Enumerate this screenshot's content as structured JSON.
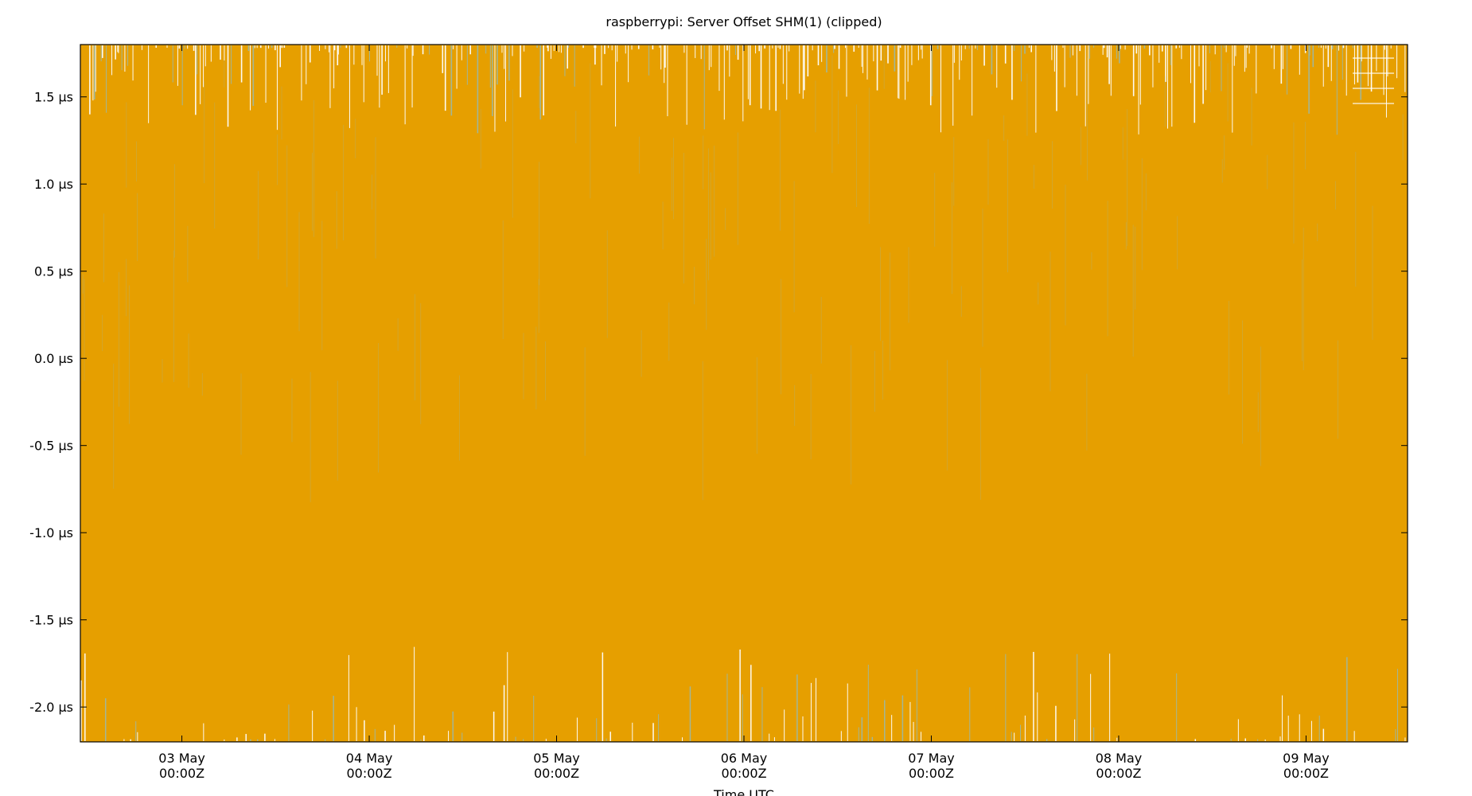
{
  "chart_data": {
    "type": "line",
    "title": "raspberrypi: Server Offset SHM(1) (clipped)",
    "xlabel": "Time UTC",
    "ylabel": "",
    "x_tick_labels": [
      [
        "03 May",
        "00:00Z"
      ],
      [
        "04 May",
        "00:00Z"
      ],
      [
        "05 May",
        "00:00Z"
      ],
      [
        "06 May",
        "00:00Z"
      ],
      [
        "07 May",
        "00:00Z"
      ],
      [
        "08 May",
        "00:00Z"
      ],
      [
        "09 May",
        "00:00Z"
      ]
    ],
    "y_ticks": [
      1.5,
      1.0,
      0.5,
      0.0,
      -0.5,
      -1.0,
      -1.5,
      -2.0
    ],
    "y_tick_labels": [
      "1.5 µs",
      "1.0 µs",
      "0.5 µs",
      "0.0 µs",
      "-0.5 µs",
      "-1.0 µs",
      "-1.5 µs",
      "-2.0 µs"
    ],
    "y_unit": "µs",
    "xlim": [
      "2022-05-02T11:00Z",
      "2022-05-09T13:00Z"
    ],
    "ylim": [
      -2.2,
      1.8
    ],
    "grid": false,
    "legend": "top-right",
    "series": [
      {
        "name": "",
        "color": "#e69f00",
        "pattern": "dense oscillation filling nearly the whole plot range (clipped at both limits)"
      }
    ],
    "colors": {
      "series": "#e69f00",
      "gaps": "#ffffff",
      "secondary": "#9fb8a0"
    }
  }
}
